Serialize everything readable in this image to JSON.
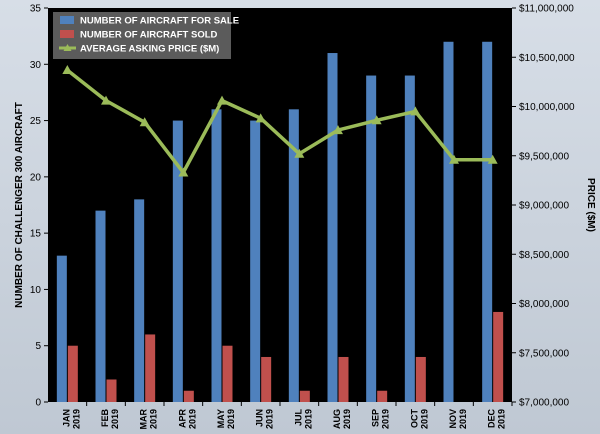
{
  "chart_data": {
    "type": "bar",
    "categories": [
      {
        "month": "JAN",
        "year": "2019"
      },
      {
        "month": "FEB",
        "year": "2019"
      },
      {
        "month": "MAR",
        "year": "2019"
      },
      {
        "month": "APR",
        "year": "2019"
      },
      {
        "month": "MAY",
        "year": "2019"
      },
      {
        "month": "JUN",
        "year": "2019"
      },
      {
        "month": "JUL",
        "year": "2019"
      },
      {
        "month": "AUG",
        "year": "2019"
      },
      {
        "month": "SEP",
        "year": "2019"
      },
      {
        "month": "OCT",
        "year": "2019"
      },
      {
        "month": "NOV",
        "year": "2019"
      },
      {
        "month": "DEC",
        "year": "2019"
      }
    ],
    "series": [
      {
        "name": "NUMBER OF AIRCRAFT FOR SALE",
        "type": "bar",
        "axis": "left",
        "color": "#4f81bd",
        "values": [
          13,
          17,
          18,
          25,
          26,
          25,
          26,
          31,
          29,
          29,
          32,
          32
        ]
      },
      {
        "name": "NUMBER OF AIRCRAFT SOLD",
        "type": "bar",
        "axis": "left",
        "color": "#c0504d",
        "values": [
          5,
          2,
          6,
          1,
          5,
          4,
          1,
          4,
          1,
          4,
          0,
          8
        ]
      },
      {
        "name": "AVERAGE ASKING PRICE ($M)",
        "type": "line",
        "axis": "right",
        "color": "#9bbb59",
        "values": [
          10370000,
          10060000,
          9840000,
          9330000,
          10060000,
          9880000,
          9520000,
          9760000,
          9860000,
          9950000,
          9460000,
          9460000
        ]
      }
    ],
    "ylabel": "NUMBER OF CHALLENGER 300 AIRCRAFT",
    "y2label": "PRICE ($M)",
    "ylim": [
      0,
      35
    ],
    "y2lim": [
      7000000,
      11000000
    ],
    "yticks": [
      0,
      5,
      10,
      15,
      20,
      25,
      30,
      35
    ],
    "y2ticks": [
      {
        "value": 7000000,
        "label": "$7,000,000"
      },
      {
        "value": 7500000,
        "label": "$7,500,000"
      },
      {
        "value": 8000000,
        "label": "$8,000,000"
      },
      {
        "value": 8500000,
        "label": "$8,500,000"
      },
      {
        "value": 9000000,
        "label": "$9,000,000"
      },
      {
        "value": 9500000,
        "label": "$9,500,000"
      },
      {
        "value": 10000000,
        "label": "$10,000,000"
      },
      {
        "value": 10500000,
        "label": "$10,500,000"
      },
      {
        "value": 11000000,
        "label": "$11,000,000"
      }
    ],
    "grid": false,
    "legend_position": "top-left",
    "plot_background": "#000000",
    "page_background": "#cbd3dd"
  }
}
